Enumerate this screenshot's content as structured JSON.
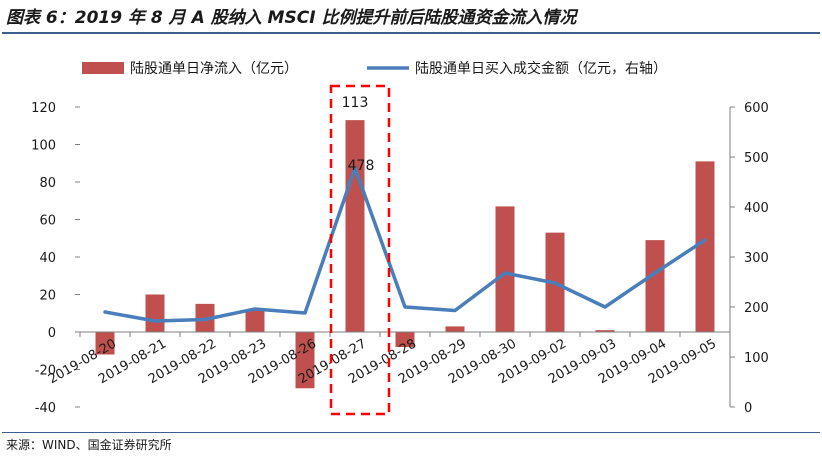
{
  "title": "图表 6：2019 年 8 月 A 股纳入 MSCI 比例提升前后陆股通资金流入情况",
  "source": "来源：WIND、国金证券研究所",
  "colors": {
    "bar": "#c0504d",
    "line": "#4a7ebb",
    "highlight": "#ff0000",
    "rule": "#3b5e8c"
  },
  "chart_data": {
    "type": "bar",
    "categories": [
      "2019-08-20",
      "2019-08-21",
      "2019-08-22",
      "2019-08-23",
      "2019-08-26",
      "2019-08-27",
      "2019-08-28",
      "2019-08-29",
      "2019-08-30",
      "2019-09-02",
      "2019-09-03",
      "2019-09-04",
      "2019-09-05"
    ],
    "series": [
      {
        "name": "陆股通单日净流入（亿元）",
        "type": "bar",
        "axis": "left",
        "values": [
          -12,
          20,
          15,
          12,
          -30,
          113,
          -8,
          3,
          67,
          53,
          1,
          49,
          91
        ]
      },
      {
        "name": "陆股通单日买入成交金额（亿元，右轴）",
        "type": "line",
        "axis": "right",
        "values": [
          190,
          172,
          175,
          196,
          188,
          478,
          200,
          193,
          268,
          248,
          200,
          268,
          334
        ]
      }
    ],
    "ylim_left": [
      -40,
      120
    ],
    "yticks_left": [
      -40,
      -20,
      0,
      20,
      40,
      60,
      80,
      100,
      120
    ],
    "ylim_right": [
      0,
      600
    ],
    "yticks_right": [
      0,
      100,
      200,
      300,
      400,
      500,
      600
    ],
    "annotations": [
      {
        "category": "2019-08-27",
        "series": 0,
        "text": "113"
      },
      {
        "category": "2019-08-27",
        "series": 1,
        "text": "478"
      }
    ],
    "highlight_category": "2019-08-27",
    "legend_position": "top",
    "grid": false
  }
}
